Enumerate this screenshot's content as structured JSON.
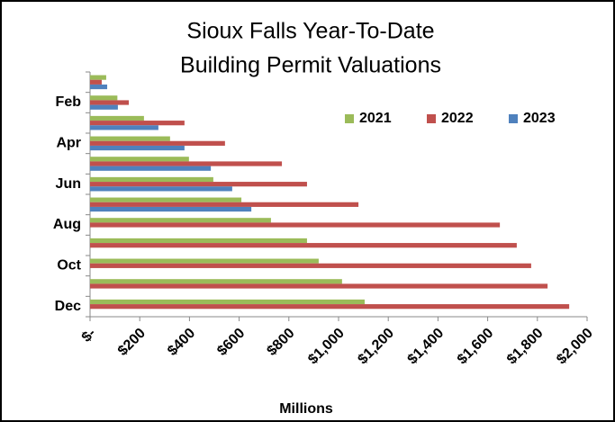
{
  "chart_data": {
    "type": "bar",
    "orientation": "horizontal",
    "title": [
      "Sioux Falls Year-To-Date",
      "Building Permit Valuations"
    ],
    "x_label": "Millions",
    "categories": [
      null,
      "Feb",
      null,
      "Apr",
      null,
      "Jun",
      null,
      "Aug",
      null,
      "Oct",
      null,
      "Dec"
    ],
    "series": [
      {
        "name": "2021",
        "color": "#9bbb59",
        "values": [
          65,
          110,
          217,
          322,
          398,
          496,
          609,
          728,
          873,
          920,
          1014,
          1105
        ]
      },
      {
        "name": "2022",
        "color": "#c0504d",
        "values": [
          47,
          156,
          380,
          543,
          772,
          873,
          1080,
          1649,
          1717,
          1775,
          1841,
          1928
        ]
      },
      {
        "name": "2023",
        "color": "#4f81bd",
        "values": [
          69,
          112,
          275,
          380,
          486,
          572,
          649,
          null,
          null,
          null,
          null,
          null
        ]
      }
    ],
    "xlim": [
      0,
      2000
    ],
    "xticks": [
      {
        "value": 0,
        "label": "$-"
      },
      {
        "value": 200,
        "label": "$200"
      },
      {
        "value": 400,
        "label": "$400"
      },
      {
        "value": 600,
        "label": "$600"
      },
      {
        "value": 800,
        "label": "$800"
      },
      {
        "value": 1000,
        "label": "$1,000"
      },
      {
        "value": 1200,
        "label": "$1,200"
      },
      {
        "value": 1400,
        "label": "$1,400"
      },
      {
        "value": 1600,
        "label": "$1,600"
      },
      {
        "value": 1800,
        "label": "$1,800"
      },
      {
        "value": 2000,
        "label": "$2,000"
      }
    ],
    "legend": "top-right",
    "grid": false
  }
}
